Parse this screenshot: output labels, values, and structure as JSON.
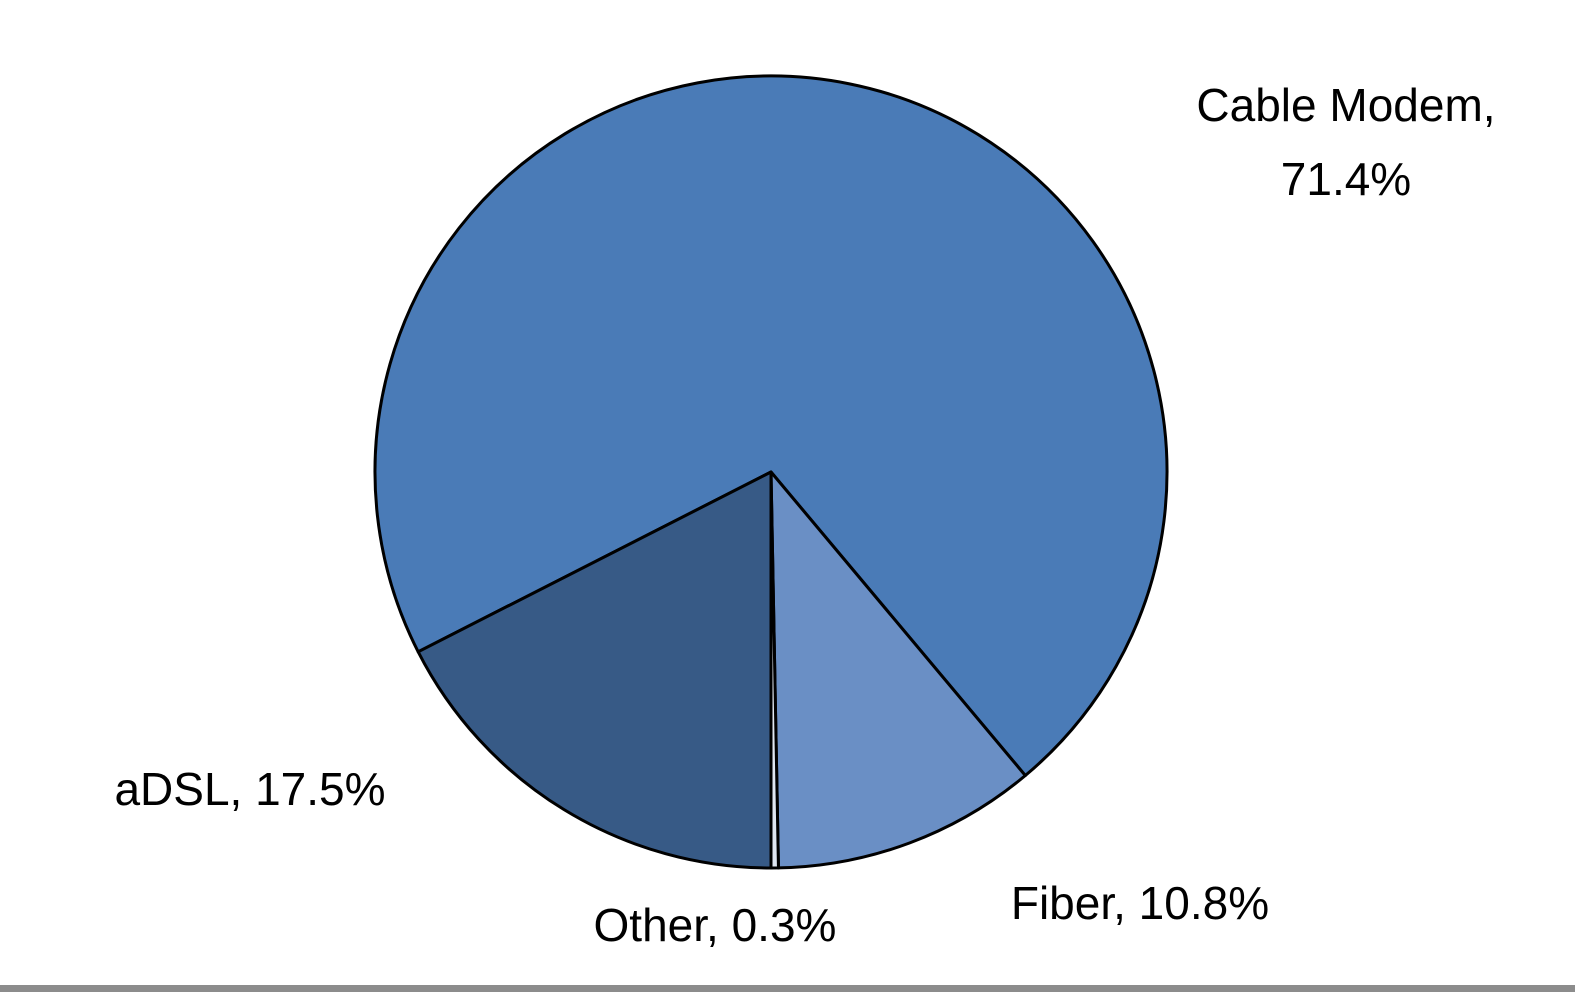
{
  "chart_data": {
    "type": "pie",
    "values": [
      71.4,
      10.8,
      0.3,
      17.5
    ],
    "value_labels": [
      "Cable Modem, 71.4%",
      "Fiber, 10.8%",
      "Other, 0.3%",
      "aDSL, 17.5%"
    ],
    "colors": [
      "#4a7bb7",
      "#6a8fc5",
      "#dfe6f1",
      "#375a86"
    ]
  }
}
